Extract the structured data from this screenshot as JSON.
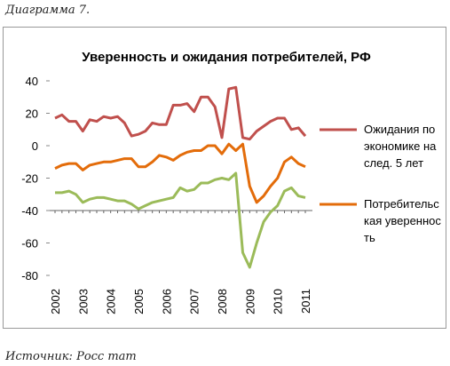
{
  "caption": "Диаграмма 7.",
  "source": "Источник: Росс тат",
  "chart_data": {
    "type": "line",
    "title": "Уверенность и ожидания потребителей, РФ",
    "categories": [
      "2002",
      null,
      null,
      null,
      "2003",
      null,
      null,
      null,
      "2004",
      null,
      null,
      null,
      "2005",
      null,
      null,
      null,
      "2006",
      null,
      null,
      null,
      "2007",
      null,
      null,
      null,
      "2008",
      null,
      null,
      null,
      "2009",
      null,
      null,
      null,
      "2010",
      null,
      null,
      null,
      "2011"
    ],
    "series": [
      {
        "name": "Ожидания по экономике на след. 5 лет",
        "color": "#c0504d",
        "values": [
          17,
          19,
          15,
          15,
          9,
          16,
          15,
          18,
          17,
          18,
          14,
          6,
          7,
          9,
          14,
          13,
          13,
          25,
          25,
          26,
          21,
          30,
          30,
          24,
          5,
          35,
          36,
          5,
          4,
          9,
          12,
          15,
          17,
          17,
          10,
          11,
          6
        ]
      },
      {
        "name": "Потребительская уверенность",
        "color": "#e36c0a",
        "values": [
          -14,
          -12,
          -11,
          -11,
          -15,
          -12,
          -11,
          -10,
          -10,
          -9,
          -8,
          -8,
          -13,
          -13,
          -10,
          -6,
          -7,
          -9,
          -6,
          -4,
          -3,
          -3,
          0,
          0,
          -5,
          1,
          -3,
          1,
          -25,
          -35,
          -31,
          -25,
          -20,
          -10,
          -7,
          -11,
          -13
        ]
      },
      {
        "color": "#9bbb59",
        "values": [
          -29,
          -29,
          -28,
          -30,
          -35,
          -33,
          -32,
          -32,
          -33,
          -34,
          -34,
          -36,
          -39,
          -37,
          -35,
          -34,
          -33,
          -32,
          -26,
          -28,
          -27,
          -23,
          -23,
          -21,
          -20,
          -21,
          -17,
          -66,
          -75,
          -60,
          -47,
          -41,
          -37,
          -28,
          -26,
          -31,
          -32
        ]
      }
    ],
    "ylim": [
      -80,
      40
    ],
    "yticks": [
      40,
      20,
      0,
      -20,
      -40,
      -60,
      -80
    ],
    "x_axis_at": -40,
    "grid": false
  }
}
